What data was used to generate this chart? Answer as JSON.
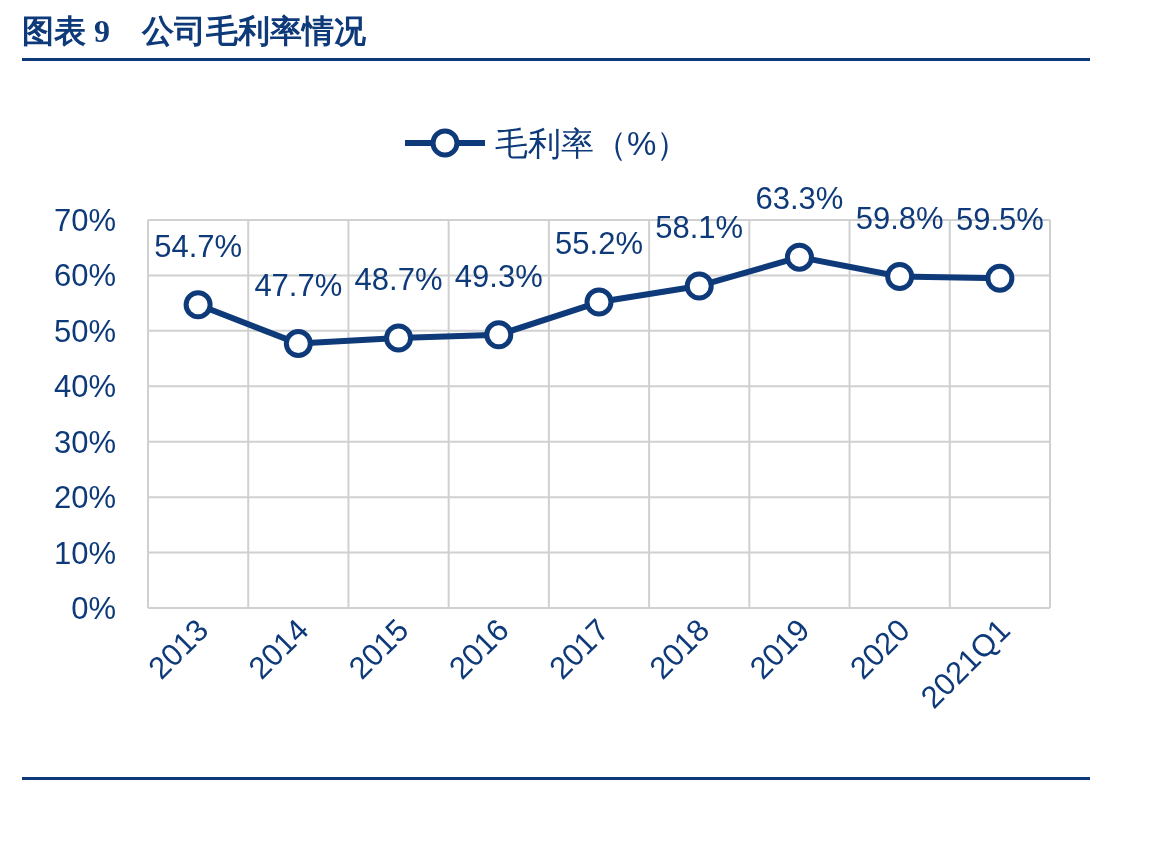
{
  "chart_data": {
    "type": "line",
    "title": "图表 9　公司毛利率情况",
    "categories": [
      "2013",
      "2014",
      "2015",
      "2016",
      "2017",
      "2018",
      "2019",
      "2020",
      "2021Q1"
    ],
    "series": [
      {
        "name": "毛利率（%）",
        "color": "#0e3a7a",
        "values": [
          54.7,
          47.7,
          48.7,
          49.3,
          55.2,
          58.1,
          63.3,
          59.8,
          59.5
        ],
        "value_labels": [
          "54.7%",
          "47.7%",
          "48.7%",
          "49.3%",
          "55.2%",
          "58.1%",
          "63.3%",
          "59.8%",
          "59.5%"
        ]
      }
    ],
    "ylim": [
      0,
      70
    ],
    "yticks": [
      {
        "value": 0,
        "label": "0%"
      },
      {
        "value": 10,
        "label": "10%"
      },
      {
        "value": 20,
        "label": "20%"
      },
      {
        "value": 30,
        "label": "30%"
      },
      {
        "value": 40,
        "label": "40%"
      },
      {
        "value": 50,
        "label": "50%"
      },
      {
        "value": 60,
        "label": "60%"
      },
      {
        "value": 70,
        "label": "70%"
      }
    ],
    "grid": true,
    "legend": "top",
    "marker": "circle",
    "line_style": "solid"
  }
}
